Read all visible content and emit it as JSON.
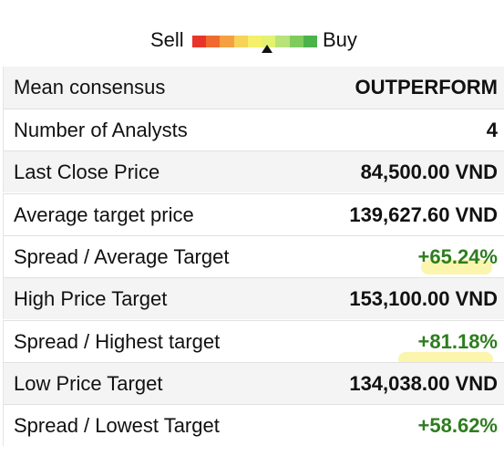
{
  "gauge": {
    "sell_label": "Sell",
    "buy_label": "Buy",
    "segments": [
      "#e8352b",
      "#f06a2f",
      "#f5a042",
      "#f7d35a",
      "#f5f06a",
      "#e4f36f",
      "#b8e27a",
      "#7fcc5e",
      "#4cb34a"
    ],
    "marker_position": 0.6
  },
  "rows": [
    {
      "label": "Mean consensus",
      "value": "OUTPERFORM",
      "positive": false
    },
    {
      "label": "Number of Analysts",
      "value": "4",
      "positive": false
    },
    {
      "label": "Last Close Price",
      "value": "84,500.00 VND",
      "positive": false
    },
    {
      "label": "Average target price",
      "value": "139,627.60 VND",
      "positive": false
    },
    {
      "label": "Spread / Average Target",
      "value": "+65.24%",
      "positive": true
    },
    {
      "label": "High Price Target",
      "value": "153,100.00 VND",
      "positive": false
    },
    {
      "label": "Spread / Highest target",
      "value": "+81.18%",
      "positive": true
    },
    {
      "label": "Low Price Target",
      "value": "134,038.00 VND",
      "positive": false
    },
    {
      "label": "Spread / Lowest Target",
      "value": "+58.62%",
      "positive": true
    }
  ],
  "colors": {
    "positive": "#2e7d1f",
    "highlight": "#fbf3a0"
  }
}
